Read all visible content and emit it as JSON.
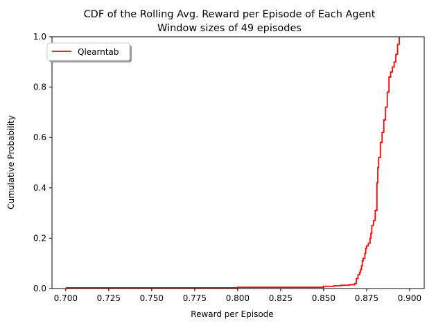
{
  "chart_data": {
    "type": "line",
    "title": "CDF of the Rolling Avg. Reward per Episode of Each Agent",
    "subtitle": "Window sizes of 49 episodes",
    "xlabel": "Reward per Episode",
    "ylabel": "Cumulative Probability",
    "xlim": [
      0.692,
      0.9085
    ],
    "ylim": [
      0,
      1.0
    ],
    "xticks": [
      0.7,
      0.725,
      0.75,
      0.775,
      0.8,
      0.825,
      0.85,
      0.875,
      0.9
    ],
    "xtick_labels": [
      "0.700",
      "0.725",
      "0.750",
      "0.775",
      "0.800",
      "0.825",
      "0.850",
      "0.875",
      "0.900"
    ],
    "yticks": [
      0.0,
      0.2,
      0.4,
      0.6,
      0.8,
      1.0
    ],
    "ytick_labels": [
      "0.0",
      "0.2",
      "0.4",
      "0.6",
      "0.8",
      "1.0"
    ],
    "grid": false,
    "legend_position": "upper-left",
    "series": [
      {
        "name": "Qlearntab",
        "color": "#ff0000",
        "step": true,
        "x": [
          0.7,
          0.8,
          0.85,
          0.856,
          0.86,
          0.865,
          0.868,
          0.869,
          0.87,
          0.871,
          0.8715,
          0.872,
          0.8725,
          0.873,
          0.874,
          0.8745,
          0.875,
          0.876,
          0.877,
          0.8775,
          0.878,
          0.879,
          0.88,
          0.881,
          0.8815,
          0.882,
          0.883,
          0.884,
          0.885,
          0.886,
          0.887,
          0.888,
          0.889,
          0.89,
          0.891,
          0.892,
          0.893,
          0.894
        ],
        "y": [
          0.003,
          0.005,
          0.009,
          0.011,
          0.013,
          0.015,
          0.02,
          0.04,
          0.055,
          0.065,
          0.075,
          0.09,
          0.11,
          0.12,
          0.14,
          0.16,
          0.17,
          0.18,
          0.2,
          0.22,
          0.25,
          0.27,
          0.31,
          0.42,
          0.48,
          0.52,
          0.58,
          0.62,
          0.67,
          0.72,
          0.78,
          0.84,
          0.86,
          0.88,
          0.9,
          0.93,
          0.97,
          1.0
        ]
      }
    ]
  }
}
